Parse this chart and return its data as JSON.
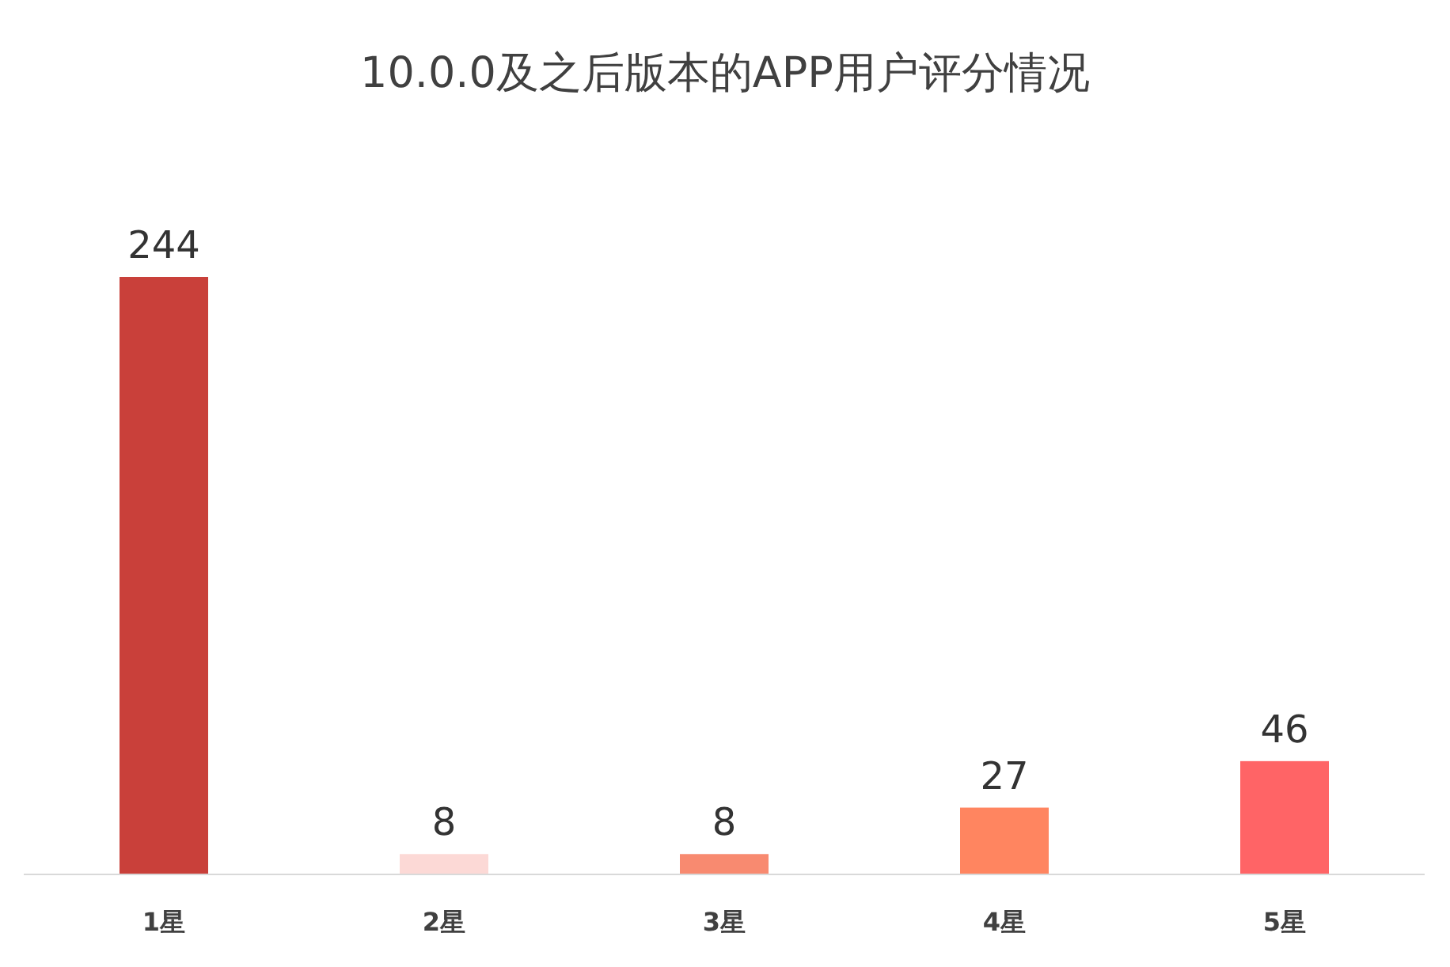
{
  "chart_data": {
    "type": "bar",
    "title": "10.0.0及之后版本的APP用户评分情况",
    "categories": [
      "1星",
      "2星",
      "3星",
      "4星",
      "5星"
    ],
    "values": [
      244,
      8,
      8,
      27,
      46
    ],
    "colors": [
      "#c9403a",
      "#fcd9d6",
      "#f88a70",
      "#ff8560",
      "#ff6466"
    ],
    "data_labels": true
  }
}
